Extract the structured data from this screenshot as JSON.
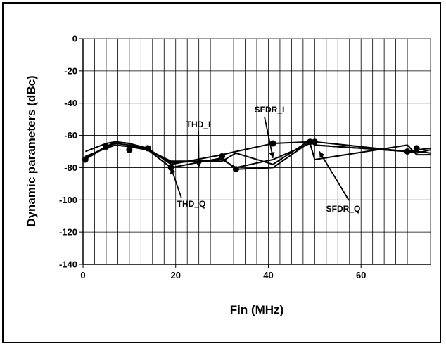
{
  "chart_data": {
    "type": "line",
    "title": "",
    "xlabel": "Fin (MHz)",
    "ylabel": "Dynamic parameters (dBc)",
    "xlim": [
      0,
      75
    ],
    "ylim": [
      -140,
      0
    ],
    "xticks": [
      0,
      20,
      40,
      60
    ],
    "yticks": [
      0,
      -20,
      -40,
      -60,
      -80,
      -100,
      -120,
      -140
    ],
    "xtick_labels": [
      "0",
      "20",
      "40",
      "60"
    ],
    "ytick_labels": [
      "0",
      "-20",
      "-40",
      "-60",
      "-80",
      "-100",
      "-120",
      "-140"
    ],
    "xgrid_step": 2.5,
    "grid": true,
    "series": [
      {
        "name": "THD_I",
        "color": "#000000",
        "x": [
          0.5,
          5,
          7,
          10,
          14,
          19,
          30,
          33,
          41,
          49,
          50,
          70,
          72,
          75
        ],
        "y": [
          -70,
          -65,
          -64,
          -65,
          -69,
          -76,
          -76,
          -71,
          -78,
          -63,
          -66,
          -70,
          -70,
          -71
        ]
      },
      {
        "name": "THD_Q",
        "color": "#000000",
        "x": [
          0.5,
          5,
          7,
          10,
          14,
          19,
          30,
          33,
          41,
          49,
          50,
          70,
          72,
          75
        ],
        "y": [
          -74,
          -67,
          -65,
          -66,
          -69,
          -80,
          -74,
          -81,
          -80,
          -64,
          -66,
          -70,
          -71,
          -69
        ]
      },
      {
        "name": "SFDR_I",
        "color": "#000000",
        "x": [
          0.5,
          5,
          7,
          10,
          14,
          19,
          30,
          33,
          41,
          49,
          50,
          70,
          72,
          75
        ],
        "y": [
          -75,
          -67,
          -64,
          -65,
          -68,
          -78,
          -72,
          -70,
          -65,
          -64,
          -64,
          -70,
          -69,
          -68
        ]
      },
      {
        "name": "SFDR_Q",
        "color": "#000000",
        "x": [
          0.5,
          5,
          7,
          10,
          14,
          19,
          30,
          33,
          41,
          49,
          50,
          70,
          72,
          75
        ],
        "y": [
          -73,
          -68,
          -66,
          -67,
          -69,
          -77,
          -75,
          -80,
          -75,
          -65,
          -75,
          -66,
          -72,
          -72
        ]
      }
    ],
    "markers": [
      {
        "x": 0.5,
        "y": -75
      },
      {
        "x": 5,
        "y": -67
      },
      {
        "x": 10,
        "y": -69
      },
      {
        "x": 14,
        "y": -68
      },
      {
        "x": 19,
        "y": -80
      },
      {
        "x": 30,
        "y": -73
      },
      {
        "x": 33,
        "y": -81
      },
      {
        "x": 41,
        "y": -65
      },
      {
        "x": 49,
        "y": -64
      },
      {
        "x": 50,
        "y": -64
      },
      {
        "x": 70,
        "y": -70
      },
      {
        "x": 72,
        "y": -68
      }
    ],
    "annotations": [
      {
        "text": "THD_I",
        "target": [
          25,
          -80
        ]
      },
      {
        "text": "SFDR_I",
        "target": [
          41,
          -74
        ]
      },
      {
        "text": "THD_Q",
        "target": [
          19,
          -80
        ]
      },
      {
        "text": "SFDR_Q",
        "target": [
          51,
          -70
        ]
      }
    ]
  }
}
